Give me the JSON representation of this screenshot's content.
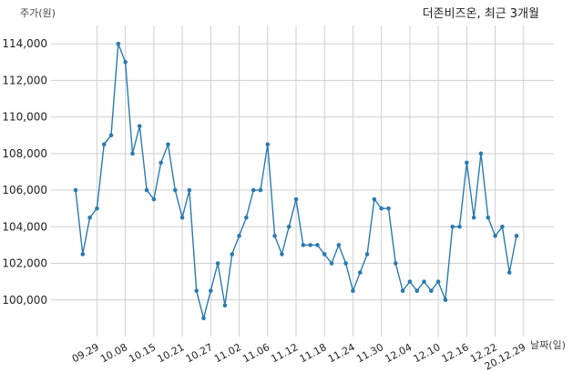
{
  "chart_data": {
    "type": "line",
    "title": "더존비즈온, 최근 3개월",
    "ylabel": "주가(원)",
    "xlabel": "날짜(일)",
    "ylim": [
      98000,
      115000
    ],
    "yticks": [
      100000,
      102000,
      104000,
      106000,
      108000,
      110000,
      112000,
      114000
    ],
    "ytick_labels": [
      "100,000",
      "102,000",
      "104,000",
      "106,000",
      "108,000",
      "110,000",
      "112,000",
      "114,000"
    ],
    "xtick_labels": [
      "09.29",
      "10.08",
      "10.15",
      "10.21",
      "10.27",
      "11.02",
      "11.06",
      "11.12",
      "11.18",
      "11.24",
      "11.30",
      "12.04",
      "12.10",
      "12.16",
      "12.22",
      "20.12.29"
    ],
    "xtick_index": [
      3,
      7,
      11,
      15,
      19,
      23,
      27,
      31,
      35,
      39,
      43,
      47,
      51,
      55,
      59,
      63
    ],
    "grid": true,
    "color": "#2a7ab0",
    "series": [
      {
        "values": [
          106000,
          102500,
          104500,
          105000,
          108500,
          109000,
          114000,
          113000,
          108000,
          109500,
          106000,
          105500,
          107500,
          108500,
          106000,
          104500,
          106000,
          100500,
          99000,
          100500,
          102000,
          99700,
          102500,
          103500,
          104500,
          106000,
          106000,
          108500,
          103500,
          102500,
          104000,
          105500,
          103000,
          103000,
          103000,
          102500,
          102000,
          103000,
          102000,
          100500,
          101500,
          102500,
          105500,
          105000,
          105000,
          102000,
          100500,
          101000,
          100500,
          101000,
          100500,
          101000,
          100000,
          104000,
          104000,
          107500,
          104500,
          108000,
          104500,
          103500,
          104000,
          101500,
          103500
        ]
      }
    ]
  }
}
